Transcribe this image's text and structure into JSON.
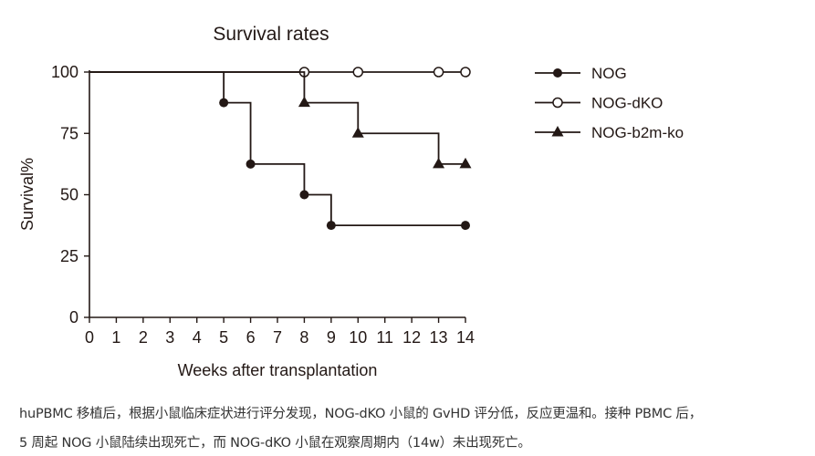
{
  "chart_data": {
    "type": "line",
    "step": true,
    "title": "Survival rates",
    "xlabel": "Weeks after transplantation",
    "ylabel": "Survival%",
    "xlim": [
      0,
      14
    ],
    "ylim": [
      0,
      100
    ],
    "xticks": [
      "0",
      "1",
      "2",
      "3",
      "4",
      "5",
      "6",
      "7",
      "8",
      "9",
      "10",
      "11",
      "12",
      "13",
      "14"
    ],
    "yticks": [
      "0",
      "25",
      "50",
      "75",
      "100"
    ],
    "grid": false,
    "legend_position": "right",
    "series": [
      {
        "name": "NOG",
        "marker": "filled-circle",
        "x": [
          0,
          5,
          6,
          8,
          9,
          14
        ],
        "y": [
          100,
          87.5,
          62.5,
          50,
          37.5,
          37.5
        ]
      },
      {
        "name": "NOG-dKO",
        "marker": "open-circle",
        "x": [
          0,
          8,
          10,
          13,
          14
        ],
        "y": [
          100,
          100,
          100,
          100,
          100
        ]
      },
      {
        "name": "NOG-b2m-ko",
        "marker": "filled-triangle",
        "x": [
          0,
          8,
          10,
          13,
          14
        ],
        "y": [
          100,
          87.5,
          75,
          62.5,
          62.5
        ]
      }
    ],
    "color": "#231815"
  },
  "caption": {
    "line1": "huPBMC 移植后，根据小鼠临床症状进行评分发现，NOG-dKO 小鼠的 GvHD 评分低，反应更温和。接种 PBMC 后，",
    "line2": "5 周起 NOG 小鼠陆续出现死亡，而 NOG-dKO 小鼠在观察周期内（14w）未出现死亡。"
  }
}
